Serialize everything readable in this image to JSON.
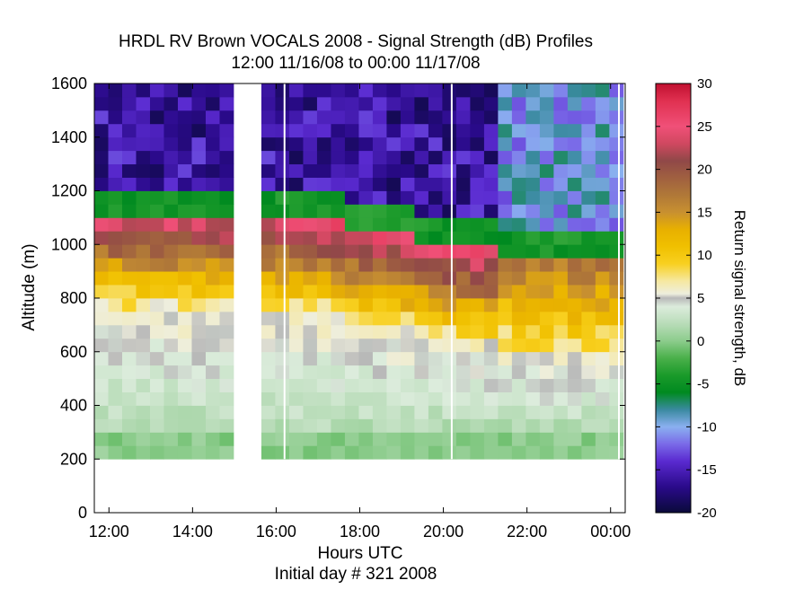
{
  "chart_data": {
    "type": "heatmap",
    "title": "HRDL RV Brown VOCALS 2008 - Signal Strength (dB) Profiles",
    "subtitle": "12:00 11/16/08 to 00:00 11/17/08",
    "xlabel": "Hours UTC",
    "xlabel2": "Initial day # 321  2008",
    "ylabel": "Altitude (m)",
    "colorbar_label": "Return signal strength, dB",
    "x_unit": "hours since 12:00 UTC",
    "xlim": [
      -0.35,
      12.35
    ],
    "ylim": [
      0,
      1600
    ],
    "x_ticks": [
      0,
      2,
      4,
      6,
      8,
      10,
      12
    ],
    "x_tick_labels": [
      "12:00",
      "14:00",
      "16:00",
      "18:00",
      "20:00",
      "22:00",
      "00:00"
    ],
    "y_ticks": [
      0,
      200,
      400,
      600,
      800,
      1000,
      1200,
      1400,
      1600
    ],
    "y_tick_labels": [
      "0",
      "200",
      "400",
      "600",
      "800",
      "1000",
      "1200",
      "1400",
      "1600"
    ],
    "colorbar_range": [
      -20,
      30
    ],
    "colorbar_ticks": [
      -20,
      -15,
      -10,
      -5,
      0,
      5,
      10,
      15,
      20,
      25,
      30
    ],
    "colorbar_tick_labels": [
      "-20",
      "-15",
      "-10",
      "-5",
      "0",
      "5",
      "10",
      "15",
      "20",
      "25",
      "30"
    ],
    "colormap": [
      [
        -20,
        "#0a0a3a"
      ],
      [
        -17,
        "#2a0a8a"
      ],
      [
        -14,
        "#5a2ad0"
      ],
      [
        -12,
        "#7a6ae8"
      ],
      [
        -10,
        "#8ab0f0"
      ],
      [
        -8,
        "#3a8aa0"
      ],
      [
        -6,
        "#008a20"
      ],
      [
        -4,
        "#1a9a2a"
      ],
      [
        -2,
        "#4ab04a"
      ],
      [
        0,
        "#8ccc8c"
      ],
      [
        2,
        "#b8dcb8"
      ],
      [
        4,
        "#dcecdc"
      ],
      [
        5,
        "#b8b8b8"
      ],
      [
        5.5,
        "#eeeedd"
      ],
      [
        7,
        "#f6e8a0"
      ],
      [
        9,
        "#f8d020"
      ],
      [
        11,
        "#f0c000"
      ],
      [
        13,
        "#e8b000"
      ],
      [
        15,
        "#c89030"
      ],
      [
        17,
        "#b07838"
      ],
      [
        19,
        "#a06040"
      ],
      [
        21,
        "#904848"
      ],
      [
        23,
        "#d04860"
      ],
      [
        25,
        "#f05078"
      ],
      [
        28,
        "#e03050"
      ],
      [
        30,
        "#c01030"
      ]
    ],
    "column_width_hours": 0.333,
    "bin_height_m": 50,
    "data_start_altitude_m": 200,
    "gap_columns": [
      [
        3.0,
        3.7
      ]
    ],
    "white_lines_hours": [
      4.2,
      8.2,
      12.2
    ],
    "boundary_layer_top_m": [
      1150,
      1150,
      1150,
      1150,
      1150,
      1150,
      1150,
      1150,
      1150,
      1150,
      1150,
      1150,
      1140,
      1140,
      1130,
      1130,
      1120,
      1110,
      1100,
      1090,
      1080,
      1070,
      1060,
      1050,
      1040,
      1030,
      1020,
      1010,
      1000,
      990,
      980,
      970,
      960,
      960,
      960,
      960
    ]
  }
}
